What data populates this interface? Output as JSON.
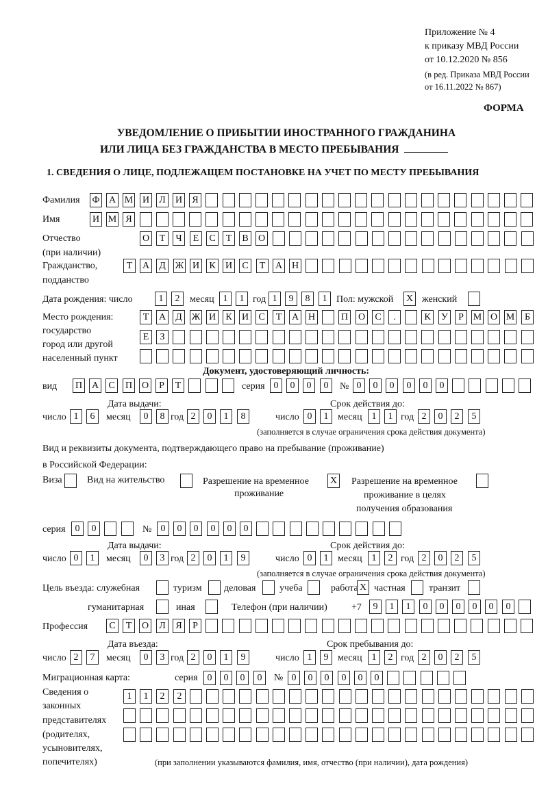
{
  "header": {
    "appendix": "Приложение № 4",
    "order": "к приказу МВД России",
    "order_date": "от 10.12.2020 № 856",
    "edition_1": "(в ред. Приказа МВД России",
    "edition_2": "от 16.11.2022 № 867)",
    "form": "ФОРМА",
    "title_1": "УВЕДОМЛЕНИЕ О ПРИБЫТИИ ИНОСТРАННОГО ГРАЖДАНИНА",
    "title_2": "ИЛИ ЛИЦА БЕЗ ГРАЖДАНСТВА В МЕСТО ПРЕБЫВАНИЯ",
    "section_1": "1. СВЕДЕНИЯ О ЛИЦЕ, ПОДЛЕЖАЩЕМ ПОСТАНОВКЕ НА УЧЕТ ПО МЕСТУ ПРЕБЫВАНИЯ"
  },
  "labels": {
    "surname": "Фамилия",
    "name": "Имя",
    "patronymic": "Отчество",
    "patronymic_note": "(при наличии)",
    "citizenship": "Гражданство,",
    "citizenship_2": "подданство",
    "birth_date": "Дата рождения:   число",
    "month": "месяц",
    "year": "год",
    "day": "число",
    "sex": "Пол: мужской",
    "female": "женский",
    "birth_place": "Место рождения:",
    "state": "государство",
    "city": "город или другой",
    "locality": "населенный пункт",
    "id_doc": "Документ, удостоверяющий личность:",
    "kind": "вид",
    "series": "серия",
    "number": "№",
    "issue_date": "Дата выдачи:",
    "valid_until": "Срок действия до:",
    "valid_note": "(заполняется в случае ограничения срока действия документа)",
    "stay_doc_1": "Вид и реквизиты документа, подтверждающего право на пребывание (проживание)",
    "stay_doc_2": "в Российской Федерации:",
    "visa": "Виза",
    "residence": "Вид на жительство",
    "trp_1": "Разрешение на временное",
    "trp_2": "проживание",
    "trp_edu_1": "Разрешение на временное",
    "trp_edu_2": "проживание в целях",
    "trp_edu_3": "получения образования",
    "purpose": "Цель въезда: служебная",
    "tourism": "туризм",
    "business": "деловая",
    "study": "учеба",
    "work": "работа",
    "private": "частная",
    "transit": "транзит",
    "humanitarian": "гуманитарная",
    "other": "иная",
    "phone": "Телефон (при наличии)",
    "phone_prefix": "+7",
    "profession": "Профессия",
    "entry_date": "Дата въезда:",
    "stay_until": "Срок пребывания до:",
    "migration_card": "Миграционная карта:",
    "reps_1": "Сведения о",
    "reps_2": "законных",
    "reps_3": "представителях",
    "reps_4": "(родителях,",
    "reps_5": "усыновителях,",
    "reps_6": "попечителях)",
    "reps_note": "(при заполнении указываются фамилия, имя, отчество (при наличии), дата рождения)"
  },
  "values": {
    "surname": "ФАМИЛИЯ",
    "name": "ИМЯ",
    "patronymic": "ОТЧЕСТВО",
    "citizenship": "ТАДЖИКИСТАН",
    "birth_day": "12",
    "birth_month": "11",
    "birth_year": "1981",
    "sex_male": "X",
    "sex_female": "",
    "birth_place_1": "ТАДЖИКИСТАН ПОС. КУРМОМБ",
    "birth_place_2": "ЕЗ",
    "birth_place_3": "",
    "id_kind": "ПАСПОРТ",
    "id_series": "0000",
    "id_number": "000000",
    "id_issue_day": "16",
    "id_issue_month": "08",
    "id_issue_year": "2018",
    "id_valid_day": "01",
    "id_valid_month": "11",
    "id_valid_year": "2025",
    "visa": "",
    "residence": "",
    "trp": "X",
    "trp_edu": "",
    "stay_series": "00",
    "stay_number": "000000",
    "stay_issue_day": "01",
    "stay_issue_month": "03",
    "stay_issue_year": "2019",
    "stay_valid_day": "01",
    "stay_valid_month": "12",
    "stay_valid_year": "2025",
    "p_service": "",
    "p_tourism": "",
    "p_business": "",
    "p_study": "",
    "p_work": "X",
    "p_private": "",
    "p_transit": "",
    "p_humanitarian": "",
    "p_other": "",
    "phone": "911000000",
    "profession": "СТОЛЯР",
    "entry_day": "27",
    "entry_month": "03",
    "entry_year": "2019",
    "until_day": "19",
    "until_month": "12",
    "until_year": "2025",
    "mc_series": "0000",
    "mc_number": "000000",
    "reps_1": "1122",
    "reps_2": "",
    "reps_3": ""
  }
}
